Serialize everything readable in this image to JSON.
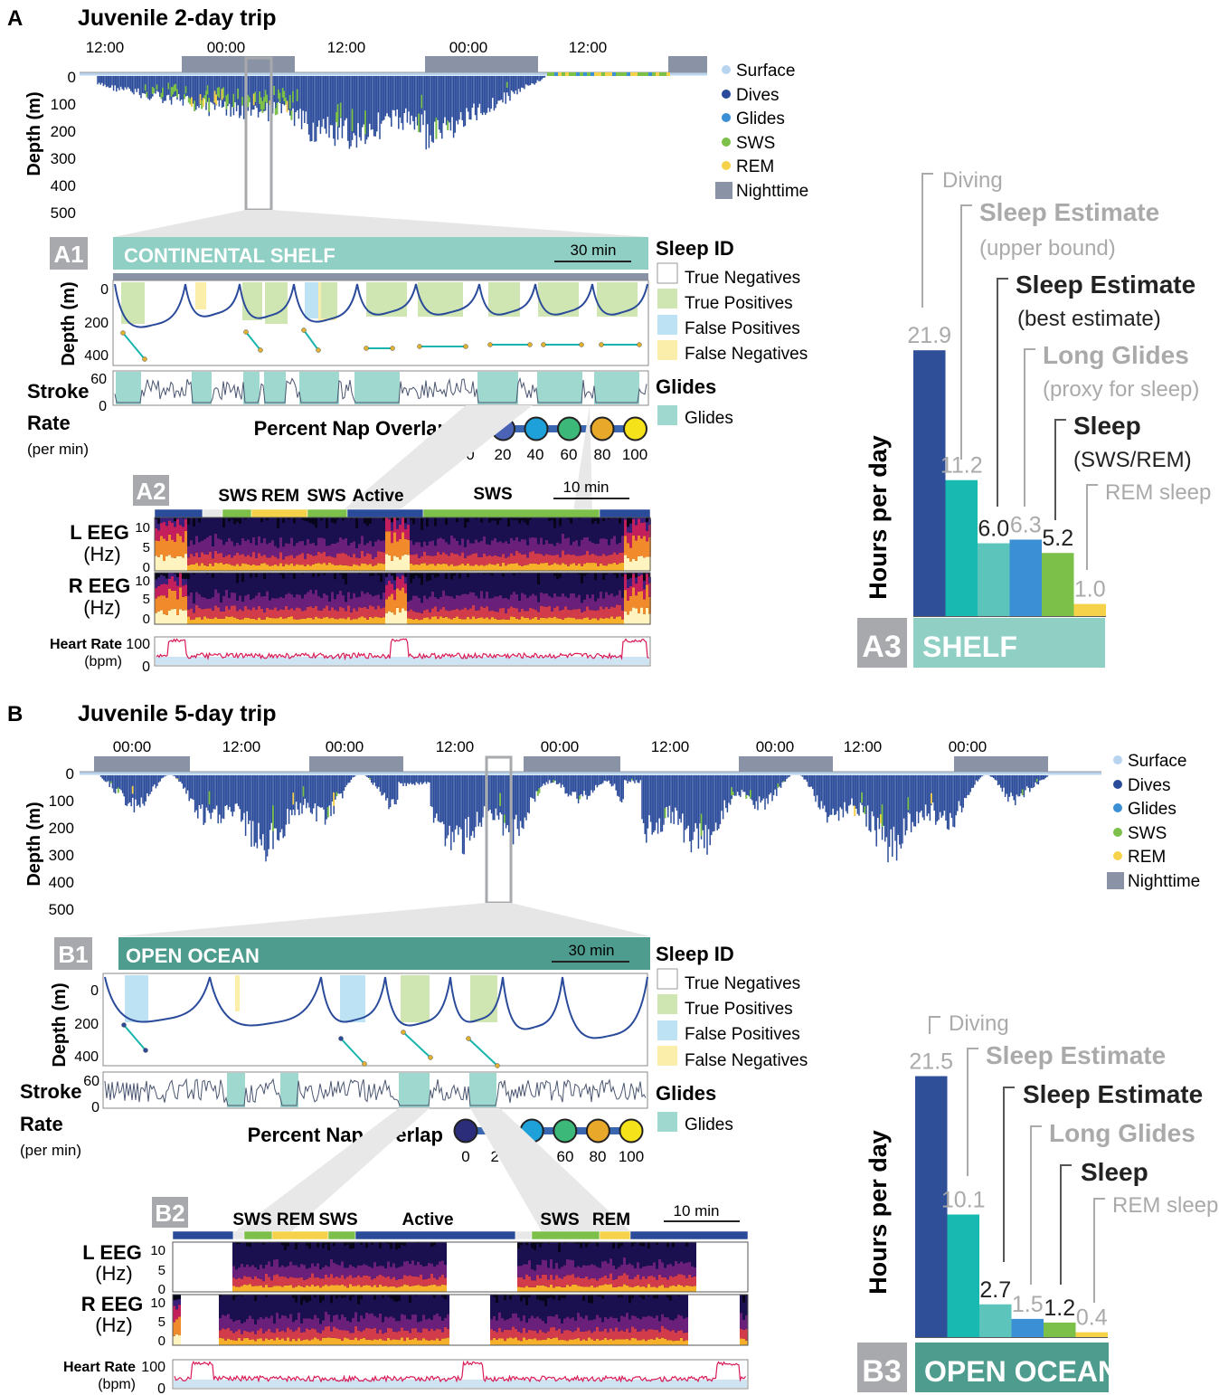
{
  "panelA": {
    "letter": "A",
    "title": "Juvenile 2-day trip",
    "time_ticks": [
      "12:00",
      "00:00",
      "12:00",
      "00:00",
      "12:00"
    ],
    "depth_label": "Depth (m)",
    "depth_ticks": [
      "0",
      "100",
      "200",
      "300",
      "400",
      "500"
    ],
    "legend": [
      "Surface",
      "Dives",
      "Glides",
      "SWS",
      "REM",
      "Nighttime"
    ],
    "a1": {
      "tag": "A1",
      "banner": "CONTINENTAL SHELF",
      "scale": "30 min",
      "depth_label": "Depth (m)",
      "depth_ticks": [
        "0",
        "200",
        "400"
      ],
      "stroke_label_1": "Stroke",
      "stroke_label_2": "Rate",
      "stroke_unit": "(per min)",
      "stroke_ticks": [
        "60",
        "0"
      ],
      "sleep_id_title": "Sleep ID",
      "sleep_id": [
        "True Negatives",
        "True Positives",
        "False Positives",
        "False Negatives"
      ],
      "glides_title": "Glides",
      "glides_item": "Glides",
      "overlap_title": "Percent Nap Overlap",
      "overlap_ticks": [
        "0",
        "20",
        "40",
        "60",
        "80",
        "100"
      ]
    },
    "a2": {
      "tag": "A2",
      "states": [
        "SWS",
        "REM",
        "SWS",
        "Active",
        "SWS"
      ],
      "scale": "10 min",
      "leeg_1": "L EEG",
      "leeg_2": "(Hz)",
      "reeg_1": "R EEG",
      "reeg_2": "(Hz)",
      "eeg_ticks": [
        "10",
        "5",
        "0"
      ],
      "hr_label": "Heart Rate",
      "hr_unit": "(bpm)",
      "hr_ticks": [
        "100",
        "0"
      ]
    },
    "a3": {
      "tag": "A3",
      "banner": "SHELF",
      "ylabel": "Hours per day",
      "labels": [
        "Diving",
        "Sleep Estimate",
        "(upper bound)",
        "Sleep Estimate",
        "(best estimate)",
        "Long Glides",
        "(proxy for sleep)",
        "Sleep",
        "(SWS/REM)",
        "REM sleep"
      ]
    }
  },
  "panelB": {
    "letter": "B",
    "title": "Juvenile 5-day trip",
    "time_ticks": [
      "00:00",
      "12:00",
      "00:00",
      "12:00",
      "00:00",
      "12:00",
      "00:00",
      "12:00",
      "00:00"
    ],
    "depth_label": "Depth (m)",
    "depth_ticks": [
      "0",
      "100",
      "200",
      "300",
      "400",
      "500"
    ],
    "legend": [
      "Surface",
      "Dives",
      "Glides",
      "SWS",
      "REM",
      "Nighttime"
    ],
    "b1": {
      "tag": "B1",
      "banner": "OPEN OCEAN",
      "scale": "30 min",
      "depth_label": "Depth (m)",
      "depth_ticks": [
        "0",
        "200",
        "400"
      ],
      "stroke_label_1": "Stroke",
      "stroke_label_2": "Rate",
      "stroke_unit": "(per min)",
      "stroke_ticks": [
        "60",
        "0"
      ],
      "sleep_id_title": "Sleep ID",
      "sleep_id": [
        "True Negatives",
        "True Positives",
        "False Positives",
        "False Negatives"
      ],
      "glides_title": "Glides",
      "glides_item": "Glides",
      "overlap_title": "Percent Nap Overlap",
      "overlap_ticks": [
        "0",
        "20",
        "40",
        "60",
        "80",
        "100"
      ]
    },
    "b2": {
      "tag": "B2",
      "states": [
        "SWS",
        "REM",
        "SWS",
        "Active",
        "SWS",
        "REM"
      ],
      "scale": "10 min",
      "leeg_1": "L EEG",
      "leeg_2": "(Hz)",
      "reeg_1": "R EEG",
      "reeg_2": "(Hz)",
      "eeg_ticks": [
        "10",
        "5",
        "0"
      ],
      "hr_label": "Heart Rate",
      "hr_unit": "(bpm)",
      "hr_ticks": [
        "100",
        "0"
      ]
    },
    "b3": {
      "tag": "B3",
      "banner": "OPEN OCEAN",
      "ylabel": "Hours per day",
      "labels": [
        "Diving",
        "Sleep Estimate",
        "Sleep Estimate",
        "Long Glides",
        "Sleep",
        "REM sleep"
      ]
    }
  },
  "colors": {
    "surface": "#b8d4ee",
    "dives": "#2a4a9a",
    "glides": "#3b8fd4",
    "sws": "#7cc04a",
    "rem": "#f6d24a",
    "night": "#8a93a6",
    "teal_light": "#8fcfc4",
    "teal_dark": "#4e9c8e",
    "true_pos": "#cfe6b3",
    "false_pos": "#bde2f4",
    "false_neg": "#fbeeaa",
    "glide_box": "#9fd8cf",
    "tag_bg": "#a7a9ac",
    "bar_diving": "#2f4f99",
    "bar_upper": "#18b9b0",
    "bar_best": "#5cc4bb",
    "bar_glides": "#3b8fd4",
    "bar_sleep": "#7cc04a",
    "bar_rem": "#f6d24a"
  },
  "chart_data": [
    {
      "id": "a3-bars",
      "type": "bar",
      "ylabel": "Hours per day",
      "categories": [
        "Diving",
        "Sleep Estimate (upper bound)",
        "Sleep Estimate (best estimate)",
        "Long Glides (proxy for sleep)",
        "Sleep (SWS/REM)",
        "REM sleep"
      ],
      "values": [
        21.9,
        11.2,
        6.0,
        6.3,
        5.2,
        1.0
      ],
      "value_labels": [
        "21.9",
        "11.2",
        "6.0",
        "6.3",
        "5.2",
        "1.0"
      ],
      "ylim": [
        0,
        24
      ]
    },
    {
      "id": "b3-bars",
      "type": "bar",
      "ylabel": "Hours per day",
      "categories": [
        "Diving",
        "Sleep Estimate (upper bound)",
        "Sleep Estimate (best estimate)",
        "Long Glides",
        "Sleep",
        "REM sleep"
      ],
      "values": [
        21.5,
        10.1,
        2.7,
        1.5,
        1.2,
        0.4
      ],
      "value_labels": [
        "21.5",
        "10.1",
        "2.7",
        "1.5",
        "1.2",
        "0.4"
      ],
      "ylim": [
        0,
        24
      ]
    }
  ]
}
